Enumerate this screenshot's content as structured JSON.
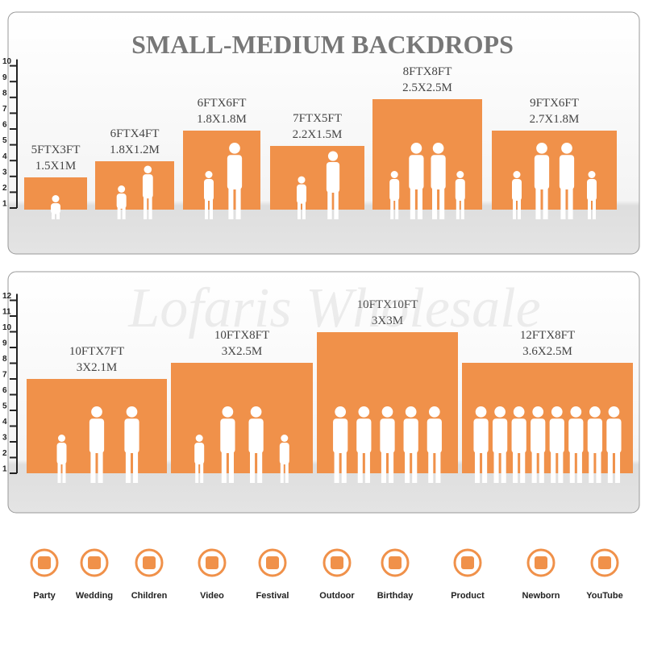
{
  "title": "SMALL-MEDIUM BACKDROPS",
  "watermark": "Lofaris Wholesale",
  "panels": [
    {
      "ruler": [
        "1",
        "2",
        "3",
        "4",
        "5",
        "6",
        "7",
        "8",
        "9",
        "10"
      ],
      "backdrops": [
        {
          "size_ft": "5FTX3FT",
          "size_m": "1.5X1M"
        },
        {
          "size_ft": "6FTX4FT",
          "size_m": "1.8X1.2M"
        },
        {
          "size_ft": "6FTX6FT",
          "size_m": "1.8X1.8M"
        },
        {
          "size_ft": "7FTX5FT",
          "size_m": "2.2X1.5M"
        },
        {
          "size_ft": "8FTX8FT",
          "size_m": "2.5X2.5M"
        },
        {
          "size_ft": "9FTX6FT",
          "size_m": "2.7X1.8M"
        }
      ]
    },
    {
      "ruler": [
        "1",
        "2",
        "3",
        "4",
        "5",
        "6",
        "7",
        "8",
        "9",
        "10",
        "11",
        "12"
      ],
      "backdrops": [
        {
          "size_ft": "10FTX7FT",
          "size_m": "3X2.1M"
        },
        {
          "size_ft": "10FTX8FT",
          "size_m": "3X2.5M"
        },
        {
          "size_ft": "10FTX10FT",
          "size_m": "3X3M"
        },
        {
          "size_ft": "12FTX8FT",
          "size_m": "3.6X2.5M"
        }
      ]
    }
  ],
  "uses": [
    "Party",
    "Wedding",
    "Children",
    "Video",
    "Festival",
    "Outdoor",
    "Birthday",
    "Product",
    "Newborn",
    "YouTube"
  ]
}
